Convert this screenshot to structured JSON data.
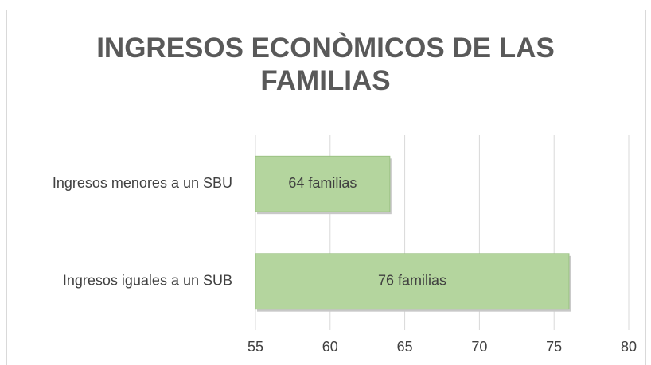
{
  "chart_data": {
    "type": "bar",
    "orientation": "horizontal",
    "title": "INGRESOS ECONÒMICOS DE LAS FAMILIAS",
    "categories": [
      "Ingresos menores a un SBU",
      "Ingresos iguales a un SUB"
    ],
    "values": [
      64,
      76
    ],
    "value_labels": [
      "64 familias",
      "76 familias"
    ],
    "color": "#b4d59e",
    "xlim": [
      55,
      80
    ],
    "xticks": [
      55,
      60,
      65,
      70,
      75,
      80
    ],
    "grid": true
  }
}
